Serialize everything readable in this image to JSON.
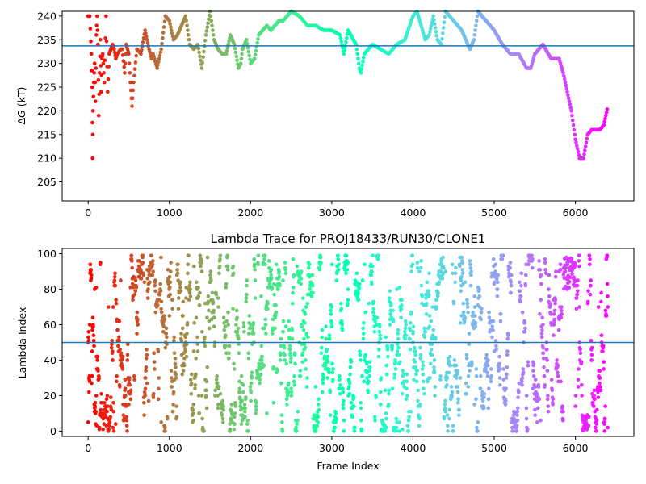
{
  "chart_data": [
    {
      "type": "scatter",
      "title": "",
      "xlabel": "",
      "ylabel": "ΔG (kT)",
      "ylabel_parts": {
        "symbol": "Δ",
        "var": "G",
        "unit": " (kT)"
      },
      "xlim": [
        -320,
        6720
      ],
      "ylim": [
        201,
        241
      ],
      "x_ticks": [
        0,
        1000,
        2000,
        3000,
        4000,
        5000,
        6000
      ],
      "y_ticks": [
        205,
        210,
        215,
        220,
        225,
        230,
        235,
        240
      ],
      "hline": {
        "value": 233.7,
        "color": "#1f77b4"
      },
      "colormap": "rainbow (red at start → violet at end)",
      "series": [
        {
          "points": [
            [
              0,
              240
            ],
            [
              20,
              240
            ],
            [
              40,
              232
            ],
            [
              50,
              225
            ],
            [
              55,
              210
            ],
            [
              60,
              220
            ],
            [
              70,
              226
            ],
            [
              80,
              230
            ],
            [
              90,
              222
            ],
            [
              100,
              236
            ],
            [
              110,
              240
            ],
            [
              120,
              234
            ],
            [
              130,
              219
            ],
            [
              140,
              228
            ],
            [
              150,
              235
            ],
            [
              160,
              224
            ],
            [
              170,
              231
            ],
            [
              180,
              232
            ],
            [
              200,
              226
            ],
            [
              220,
              240
            ],
            [
              240,
              224
            ],
            [
              260,
              232
            ],
            [
              280,
              233
            ],
            [
              300,
              234
            ],
            [
              320,
              233
            ],
            [
              340,
              231
            ],
            [
              360,
              232
            ],
            [
              400,
              233
            ],
            [
              420,
              233
            ],
            [
              450,
              228
            ],
            [
              470,
              234
            ],
            [
              500,
              232
            ],
            [
              520,
              226
            ],
            [
              540,
              221
            ],
            [
              560,
              226
            ],
            [
              600,
              233
            ],
            [
              650,
              232
            ],
            [
              700,
              237
            ],
            [
              750,
              233
            ],
            [
              780,
              231
            ],
            [
              800,
              232
            ],
            [
              850,
              229
            ],
            [
              900,
              233
            ],
            [
              950,
              240
            ],
            [
              1000,
              239
            ],
            [
              1050,
              235
            ],
            [
              1100,
              236
            ],
            [
              1150,
              238
            ],
            [
              1200,
              240
            ],
            [
              1250,
              234
            ],
            [
              1300,
              233
            ],
            [
              1350,
              234
            ],
            [
              1400,
              229
            ],
            [
              1450,
              236
            ],
            [
              1500,
              241
            ],
            [
              1550,
              235
            ],
            [
              1600,
              233
            ],
            [
              1650,
              232
            ],
            [
              1700,
              232
            ],
            [
              1750,
              236
            ],
            [
              1800,
              234
            ],
            [
              1850,
              229
            ],
            [
              1880,
              230
            ],
            [
              1900,
              233
            ],
            [
              1950,
              235
            ],
            [
              2000,
              230
            ],
            [
              2050,
              231
            ],
            [
              2100,
              236
            ],
            [
              2150,
              237
            ],
            [
              2200,
              238
            ],
            [
              2250,
              237
            ],
            [
              2300,
              238
            ],
            [
              2350,
              239
            ],
            [
              2400,
              239
            ],
            [
              2450,
              240
            ],
            [
              2500,
              241
            ],
            [
              2600,
              240
            ],
            [
              2700,
              238
            ],
            [
              2800,
              238
            ],
            [
              2900,
              237
            ],
            [
              3000,
              237
            ],
            [
              3100,
              236
            ],
            [
              3150,
              232
            ],
            [
              3200,
              237
            ],
            [
              3300,
              234
            ],
            [
              3340,
              229
            ],
            [
              3360,
              228
            ],
            [
              3400,
              232
            ],
            [
              3500,
              234
            ],
            [
              3600,
              233
            ],
            [
              3700,
              232
            ],
            [
              3800,
              234
            ],
            [
              3900,
              235
            ],
            [
              4000,
              240
            ],
            [
              4050,
              241
            ],
            [
              4100,
              238
            ],
            [
              4150,
              235
            ],
            [
              4200,
              236
            ],
            [
              4250,
              240
            ],
            [
              4300,
              235
            ],
            [
              4350,
              234
            ],
            [
              4400,
              241
            ],
            [
              4500,
              239
            ],
            [
              4600,
              237
            ],
            [
              4700,
              233
            ],
            [
              4750,
              235
            ],
            [
              4800,
              241
            ],
            [
              4900,
              239
            ],
            [
              5000,
              237
            ],
            [
              5100,
              234
            ],
            [
              5200,
              232
            ],
            [
              5300,
              232
            ],
            [
              5400,
              229
            ],
            [
              5450,
              229
            ],
            [
              5500,
              232
            ],
            [
              5600,
              234
            ],
            [
              5700,
              231
            ],
            [
              5750,
              231
            ],
            [
              5800,
              231
            ],
            [
              5850,
              228
            ],
            [
              5900,
              224
            ],
            [
              5950,
              220
            ],
            [
              6000,
              214
            ],
            [
              6050,
              210
            ],
            [
              6100,
              210
            ],
            [
              6150,
              215
            ],
            [
              6200,
              216
            ],
            [
              6300,
              216
            ],
            [
              6350,
              217
            ],
            [
              6400,
              221
            ]
          ]
        }
      ]
    },
    {
      "type": "scatter",
      "title": "Lambda Trace for PROJ18433/RUN30/CLONE1",
      "xlabel": "Frame Index",
      "ylabel": "Lambda Index",
      "xlim": [
        -320,
        6720
      ],
      "ylim": [
        -3,
        103
      ],
      "x_ticks": [
        0,
        1000,
        2000,
        3000,
        4000,
        5000,
        6000
      ],
      "y_ticks": [
        0,
        20,
        40,
        60,
        80,
        100
      ],
      "hline": {
        "value": 50,
        "color": "#1f77b4"
      },
      "colormap": "rainbow (red at start → violet at end)",
      "x_range_points": [
        0,
        6400
      ],
      "y_range_points": [
        0,
        99
      ],
      "series": [
        {
          "description_points": [
            [
              0,
              5
            ],
            [
              10,
              30
            ],
            [
              20,
              60
            ],
            [
              30,
              90
            ],
            [
              50,
              45
            ],
            [
              80,
              80
            ],
            [
              100,
              20
            ],
            [
              150,
              95
            ],
            [
              200,
              10
            ],
            [
              250,
              70
            ],
            [
              300,
              40
            ],
            [
              400,
              85
            ],
            [
              500,
              15
            ],
            [
              600,
              55
            ],
            [
              700,
              30
            ],
            [
              800,
              90
            ],
            [
              900,
              5
            ],
            [
              1000,
              65
            ],
            [
              1200,
              45
            ],
            [
              1400,
              20
            ],
            [
              1600,
              75
            ],
            [
              1800,
              35
            ],
            [
              2000,
              60
            ],
            [
              2200,
              10
            ],
            [
              2400,
              85
            ],
            [
              2600,
              50
            ],
            [
              2800,
              25
            ],
            [
              3000,
              70
            ],
            [
              3200,
              95
            ],
            [
              3400,
              40
            ],
            [
              3600,
              15
            ],
            [
              3800,
              80
            ],
            [
              4000,
              55
            ],
            [
              4200,
              30
            ],
            [
              4400,
              90
            ],
            [
              4600,
              65
            ],
            [
              4800,
              5
            ],
            [
              5000,
              45
            ],
            [
              5200,
              85
            ],
            [
              5400,
              20
            ],
            [
              5600,
              60
            ],
            [
              5800,
              90
            ],
            [
              5900,
              95
            ],
            [
              6000,
              85
            ],
            [
              6050,
              70
            ],
            [
              6100,
              5
            ],
            [
              6200,
              40
            ],
            [
              6300,
              25
            ],
            [
              6400,
              2
            ]
          ]
        }
      ]
    }
  ]
}
